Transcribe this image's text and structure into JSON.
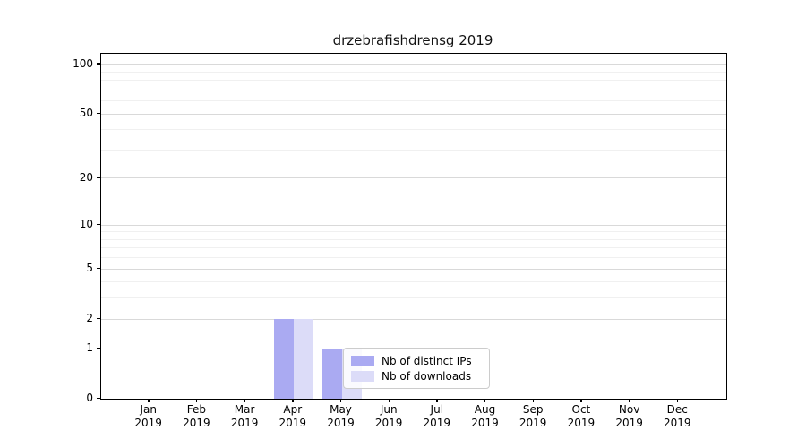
{
  "title": "drzebrafishdrensg 2019",
  "chart_data": {
    "type": "bar",
    "title": "drzebrafishdrensg 2019",
    "categories": [
      "Jan",
      "Feb",
      "Mar",
      "Apr",
      "May",
      "Jun",
      "Jul",
      "Aug",
      "Sep",
      "Oct",
      "Nov",
      "Dec"
    ],
    "category_year": "2019",
    "series": [
      {
        "name": "Nb of distinct IPs",
        "color": "#aaaaf2",
        "values": [
          0,
          0,
          0,
          2,
          1,
          0,
          0,
          0,
          0,
          0,
          0,
          0
        ]
      },
      {
        "name": "Nb of downloads",
        "color": "#dcdcf8",
        "values": [
          0,
          0,
          0,
          2,
          1,
          0,
          0,
          0,
          0,
          0,
          0,
          0
        ]
      }
    ],
    "xlabel": "",
    "ylabel": "",
    "yscale": "log1p",
    "ylim": [
      0,
      116
    ],
    "ytick_values": [
      0,
      1,
      2,
      5,
      10,
      20,
      50,
      100
    ],
    "yminor_values": [
      3,
      4,
      6,
      7,
      8,
      9,
      30,
      40,
      60,
      70,
      80,
      90
    ],
    "grid": "horizontal",
    "legend_position": "lower center-right inside plot"
  },
  "legend": {
    "items": [
      "Nb of distinct IPs",
      "Nb of downloads"
    ]
  },
  "colors": {
    "bar_distinct_ips": "#aaaaf2",
    "bar_downloads": "#dcdcf8",
    "grid_major": "#d9d9d9",
    "grid_minor": "#f0f0f0",
    "axis": "#000000"
  }
}
